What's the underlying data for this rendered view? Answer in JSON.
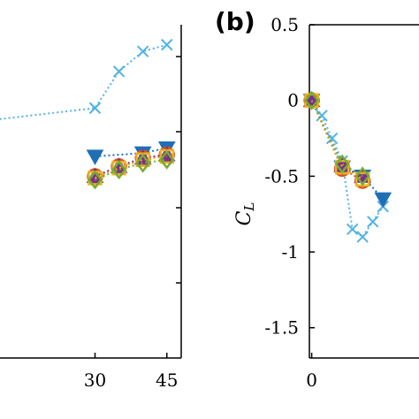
{
  "chart_data": [
    {
      "type": "line",
      "title": "",
      "xlabel": "",
      "ylabel": "",
      "xlim": [
        0,
        48
      ],
      "ylim": [
        0,
        1
      ],
      "x_ticks": [
        "30",
        "45"
      ],
      "series": [
        {
          "marker": "x",
          "color": "#4fb3e8",
          "x": [
            0,
            30,
            35,
            40,
            45
          ],
          "y": [
            0.7,
            0.75,
            0.86,
            0.92,
            0.94
          ]
        },
        {
          "marker": "triangle-down",
          "color": "#1f6fb5",
          "x": [
            30,
            40,
            45
          ],
          "y": [
            0.605,
            0.615,
            0.63
          ]
        },
        {
          "marker": "circle",
          "color": "#d9541a",
          "x": [
            30,
            35,
            40,
            45
          ],
          "y": [
            0.545,
            0.575,
            0.6,
            0.61
          ]
        },
        {
          "marker": "triangle-up",
          "color": "#7e2f8e",
          "x": [
            30,
            35,
            40,
            45
          ],
          "y": [
            0.545,
            0.575,
            0.6,
            0.61
          ]
        },
        {
          "marker": "square",
          "color": "#edb120",
          "x": [
            30,
            35,
            40,
            45
          ],
          "y": [
            0.54,
            0.57,
            0.595,
            0.605
          ]
        },
        {
          "marker": "diamond",
          "color": "#77ac30",
          "x": [
            30,
            35,
            40,
            45
          ],
          "y": [
            0.535,
            0.565,
            0.585,
            0.595
          ]
        }
      ]
    },
    {
      "type": "line",
      "panel_label": "(b)",
      "title": "",
      "xlabel": "",
      "ylabel": "C",
      "ylabel_sub": "L",
      "xlim": [
        -5,
        20
      ],
      "ylim": [
        -1.7,
        0.5
      ],
      "x_ticks": [
        "0"
      ],
      "y_ticks": [
        "0.5",
        "0",
        "-0.5",
        "-1",
        "-1.5"
      ],
      "series": [
        {
          "marker": "x",
          "color": "#4fb3e8",
          "x": [
            0,
            1,
            2,
            3,
            4,
            5,
            6,
            7
          ],
          "y": [
            0,
            -0.1,
            -0.25,
            -0.4,
            -0.85,
            -0.9,
            -0.8,
            -0.7
          ]
        },
        {
          "marker": "triangle-down",
          "color": "#1f6fb5",
          "x": [
            0,
            3,
            5,
            7
          ],
          "y": [
            0,
            -0.44,
            -0.5,
            -0.65
          ]
        },
        {
          "marker": "circle",
          "color": "#d9541a",
          "x": [
            0,
            3,
            5
          ],
          "y": [
            0,
            -0.45,
            -0.53
          ]
        },
        {
          "marker": "triangle-up",
          "color": "#7e2f8e",
          "x": [
            0,
            3,
            5
          ],
          "y": [
            0,
            -0.43,
            -0.5
          ]
        },
        {
          "marker": "square",
          "color": "#edb120",
          "x": [
            0,
            3,
            5
          ],
          "y": [
            0,
            -0.44,
            -0.52
          ]
        },
        {
          "marker": "diamond",
          "color": "#77ac30",
          "x": [
            0,
            3,
            5
          ],
          "y": [
            0,
            -0.42,
            -0.5
          ]
        }
      ]
    }
  ]
}
